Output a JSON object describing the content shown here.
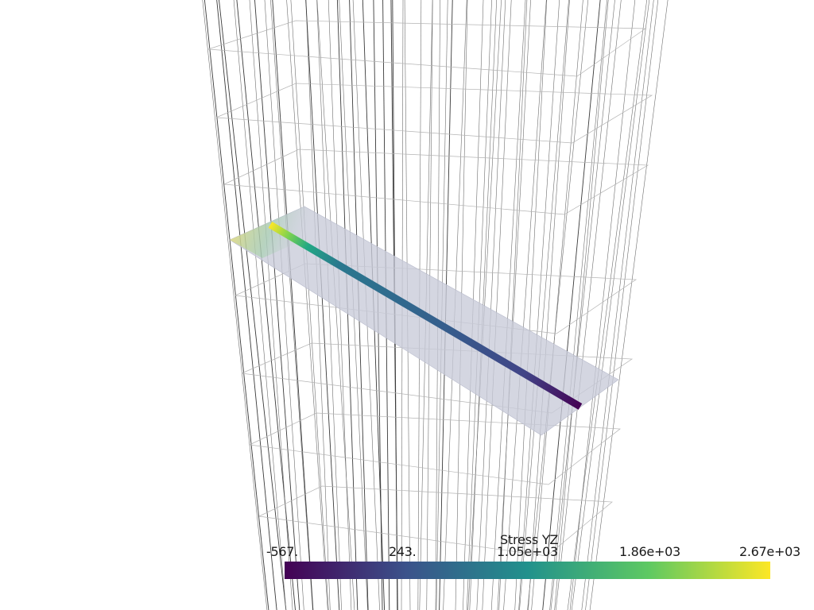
{
  "scalar_bar": {
    "title": "Stress YZ",
    "tick_labels": [
      "-567.",
      "243.",
      "1.05e+03",
      "1.86e+03",
      "2.67e+03"
    ],
    "range": [
      -567,
      2670
    ],
    "colormap": "viridis",
    "colormap_stops": [
      "#440154",
      "#3b528b",
      "#21918c",
      "#5ec962",
      "#fde725"
    ]
  },
  "scene": {
    "background": "#ffffff",
    "mesh_edge_color": "#000000",
    "plane_color": "#c8cad8",
    "beam_start_color": "#fde725",
    "beam_end_color": "#440154"
  }
}
